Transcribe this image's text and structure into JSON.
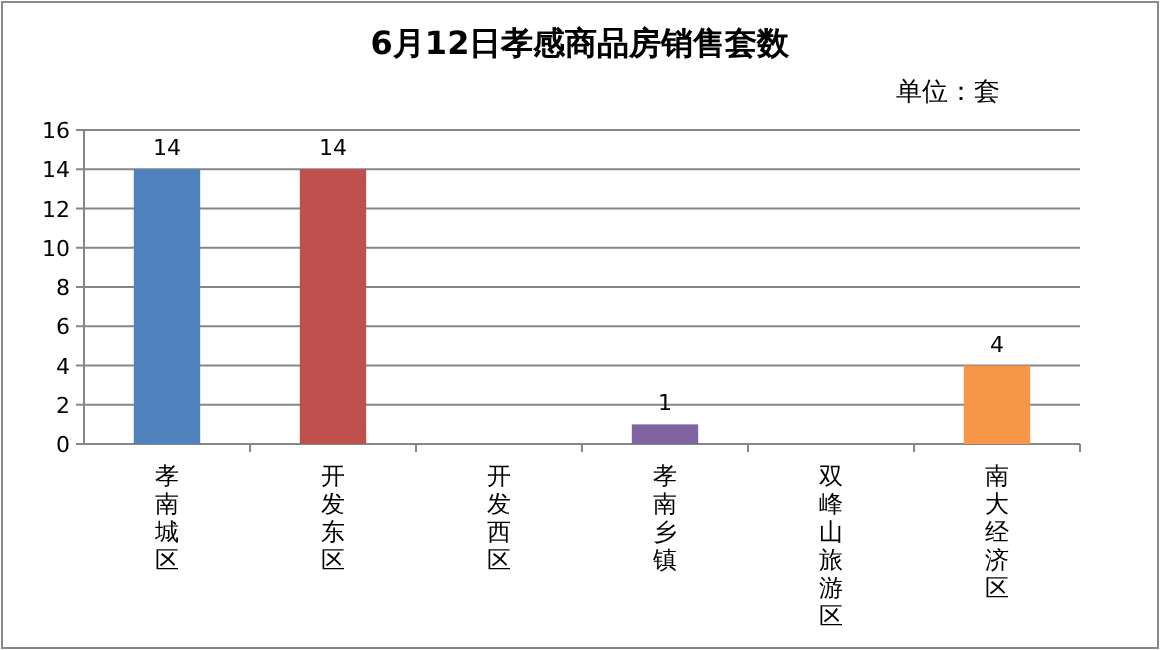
{
  "chart_data": {
    "type": "bar",
    "title": "6月12日孝感商品房销售套数",
    "subtitle": "单位：套",
    "categories": [
      "孝南城区",
      "开发东区",
      "开发西区",
      "孝南乡镇",
      "双峰山旅游区",
      "南大经济区"
    ],
    "values": [
      14,
      14,
      0,
      1,
      0,
      4
    ],
    "colors": [
      "#4f81bd",
      "#c0504d",
      "#9bbb59",
      "#8064a2",
      "#4bacc6",
      "#f79646"
    ],
    "value_labels": [
      "14",
      "14",
      null,
      "1",
      null,
      "4"
    ],
    "ylim": [
      0,
      16
    ],
    "yticks": [
      0,
      2,
      4,
      6,
      8,
      10,
      12,
      14,
      16
    ],
    "grid": "y"
  }
}
